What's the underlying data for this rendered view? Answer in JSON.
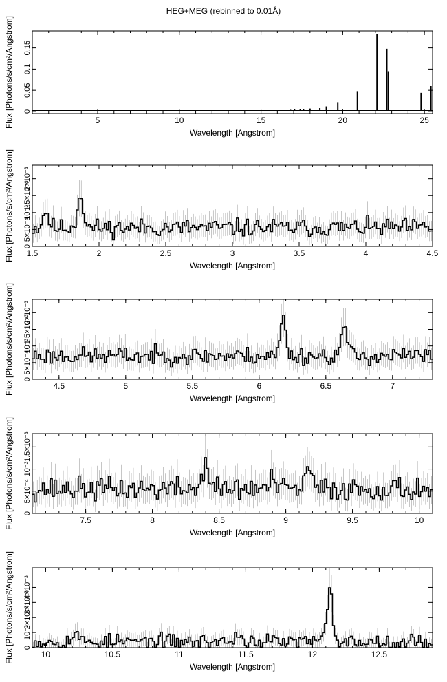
{
  "title": "HEG+MEG (rebinned to 0.01Å)",
  "chart_data": [
    {
      "type": "histogram-step",
      "xlabel": "Wavelength [Angstrom]",
      "ylabel": "Flux [Photons/s/cm²/Angstrom]",
      "xlim": [
        1.0,
        25.5
      ],
      "ylim": [
        -0.005,
        0.19
      ],
      "xticks": [
        5,
        10,
        15,
        20,
        25
      ],
      "yticks": [
        0,
        0.05,
        0.1,
        0.15
      ],
      "ytick_labels": [
        "0",
        "0.05",
        "0.1",
        "0.15"
      ],
      "baseline": 0.0015,
      "lines": [
        {
          "x": 12.13,
          "y": 0.0025
        },
        {
          "x": 15.0,
          "y": 0.002
        },
        {
          "x": 16.0,
          "y": 0.003
        },
        {
          "x": 16.8,
          "y": 0.004
        },
        {
          "x": 17.05,
          "y": 0.005
        },
        {
          "x": 17.4,
          "y": 0.006
        },
        {
          "x": 17.6,
          "y": 0.006
        },
        {
          "x": 18.0,
          "y": 0.007
        },
        {
          "x": 18.6,
          "y": 0.008
        },
        {
          "x": 19.0,
          "y": 0.012
        },
        {
          "x": 19.7,
          "y": 0.022
        },
        {
          "x": 20.9,
          "y": 0.048
        },
        {
          "x": 22.1,
          "y": 0.183
        },
        {
          "x": 22.7,
          "y": 0.148
        },
        {
          "x": 22.8,
          "y": 0.095
        },
        {
          "x": 24.8,
          "y": 0.044
        },
        {
          "x": 25.4,
          "y": 0.06
        }
      ]
    },
    {
      "type": "histogram-step",
      "xlabel": "Wavelength [Angstrom]",
      "ylabel": "Flux [Photons/s/cm²/Angstrom]",
      "xlim": [
        1.5,
        4.5
      ],
      "ylim": [
        0,
        0.0024
      ],
      "xticks": [
        1.5,
        2,
        2.5,
        3,
        3.5,
        4,
        4.5
      ],
      "yticks": [
        0,
        0.0005,
        0.001,
        0.0015,
        0.002
      ],
      "ytick_labels": [
        "0",
        "5×10⁻⁴",
        "10⁻³",
        "1.5×10⁻³",
        "2×10⁻³"
      ],
      "baseline": 0.00055,
      "noise": 0.00013,
      "peaks": [
        {
          "x": 1.86,
          "h": 0.001
        },
        {
          "x": 1.6,
          "h": 0.0005
        }
      ],
      "seed": 11
    },
    {
      "type": "histogram-step",
      "xlabel": "Wavelength [Angstrom]",
      "ylabel": "Flux [Photons/s/cm²/Angstrom]",
      "xlim": [
        4.3,
        7.3
      ],
      "ylim": [
        0,
        0.0024
      ],
      "xticks": [
        4.5,
        5,
        5.5,
        6,
        6.5,
        7
      ],
      "yticks": [
        0,
        0.0005,
        0.001,
        0.0015,
        0.002
      ],
      "ytick_labels": [
        "0",
        "5×10⁻⁴",
        "10⁻³",
        "1.5×10⁻³",
        "2×10⁻³"
      ],
      "baseline": 0.0007,
      "noise": 0.00013,
      "peaks": [
        {
          "x": 6.18,
          "h": 0.0011
        },
        {
          "x": 6.64,
          "h": 0.0009
        }
      ],
      "seed": 23
    },
    {
      "type": "histogram-step",
      "xlabel": "Wavelength [Angstrom]",
      "ylabel": "Flux [Photons/s/cm²/Angstrom]",
      "xlim": [
        7.1,
        10.1
      ],
      "ylim": [
        0,
        0.0018
      ],
      "xticks": [
        7.5,
        8,
        8.5,
        9,
        9.5,
        10
      ],
      "yticks": [
        0,
        0.0005,
        0.001,
        0.0015
      ],
      "ytick_labels": [
        "0",
        "5×10⁻⁴",
        "10⁻³",
        "1.5×10⁻³"
      ],
      "baseline": 0.00055,
      "noise": 0.00013,
      "peaks": [
        {
          "x": 8.4,
          "h": 0.00065
        },
        {
          "x": 9.17,
          "h": 0.0005
        },
        {
          "x": 8.9,
          "h": 0.0002
        }
      ],
      "seed": 37
    },
    {
      "type": "histogram-step",
      "xlabel": "Wavelength [Angstrom]",
      "ylabel": "Flux [Photons/s/cm²/Angstrom]",
      "xlim": [
        9.9,
        12.9
      ],
      "ylim": [
        0,
        0.0053
      ],
      "xticks": [
        10,
        10.5,
        11,
        11.5,
        12,
        12.5
      ],
      "yticks": [
        0,
        0.001,
        0.002,
        0.003,
        0.004
      ],
      "ytick_labels": [
        "0",
        "10⁻³",
        "2×10⁻³",
        "3×10⁻³",
        "4×10⁻³"
      ],
      "baseline": 0.0004,
      "noise": 0.00025,
      "peaks": [
        {
          "x": 12.13,
          "h": 0.0034
        },
        {
          "x": 10.22,
          "h": 0.0006
        },
        {
          "x": 11.45,
          "h": 0.0005
        }
      ],
      "seed": 53
    }
  ]
}
